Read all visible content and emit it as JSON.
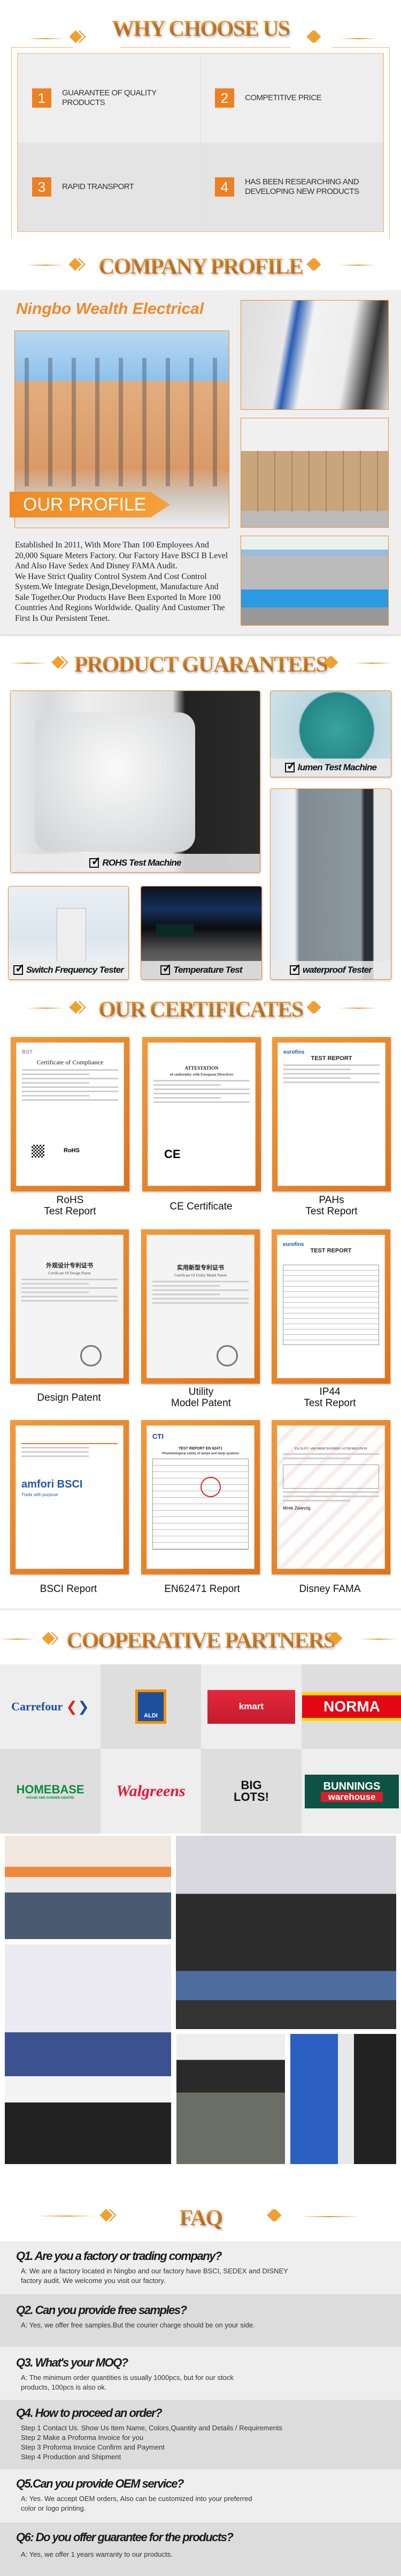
{
  "why_choose_us": {
    "title": "WHY CHOOSE US",
    "items": [
      {
        "num": "1",
        "text": "GUARANTEE OF QUALITY PRODUCTS"
      },
      {
        "num": "2",
        "text": "COMPETITIVE PRICE"
      },
      {
        "num": "3",
        "text": "RAPID TRANSPORT"
      },
      {
        "num": "4",
        "text": "HAS BEEN RESEARCHING AND DEVELOPING NEW PRODUCTS"
      }
    ]
  },
  "company_profile": {
    "title": "COMPANY PROFILE",
    "company_name": "Ningbo Wealth Electrical",
    "banner_label": "OUR PROFILE",
    "description": "Established In 2011, With More Than 100 Employees And 20,000 Square Meters Factory. Our Factory Have BSCI B Level And Also Have Sedex And Disney FAMA Audit.\nWe Have Strict Quality Control System And Cost Control System.We Integrate Design,Development, Manufacture And Sale Together.Our Products Have Been Exported In More 100 Countries And Regions Worldwide. Quality And Customer The First Is Our Persistent Tenet."
  },
  "product_guarantees": {
    "title": "PRODUCT GUARANTEES",
    "items": [
      "ROHS Test Machine",
      "lumen Test Machine",
      "Switch Frequency Tester",
      "Temperature Test",
      "waterproof Tester"
    ]
  },
  "certificates": {
    "title": "OUR CERTIFICATES",
    "items": [
      {
        "label": "RoHS\nTest Report",
        "doc_title": "Certificate of Compliance",
        "doc_mark": "RoHS",
        "doc_logo": "BST"
      },
      {
        "label": "CE Certificate",
        "doc_title": "ATTESTATION",
        "doc_sub": "of conformity with European Directives",
        "doc_mark": "CE"
      },
      {
        "label": "PAHs\nTest Report",
        "doc_title": "TEST REPORT",
        "doc_logo": "eurofins"
      },
      {
        "label": "Design Patent",
        "doc_title": "外观设计专利证书",
        "doc_sub": "Certificate Of Design Patent"
      },
      {
        "label": "Utility\nModel Patent",
        "doc_title": "实用新型专利证书",
        "doc_sub": "Certificate Of Utility Model Patent"
      },
      {
        "label": "IP44\nTest Report",
        "doc_title": "TEST REPORT",
        "doc_logo": "eurofins"
      },
      {
        "label": "BSCI Report",
        "doc_title": "amfori BSCI",
        "doc_sub": "Trade with purpose"
      },
      {
        "label": "EN62471 Report",
        "doc_title": "TEST REPORT EN 62471",
        "doc_sub": "Photobiological safety of lamps and lamp systems",
        "doc_logo": "CTI"
      },
      {
        "label": "Disney FAMA",
        "doc_title": "FACILITY AND MERCHANDISE AUTHORIZATION",
        "doc_sub": "Mirek Zwanzig"
      }
    ]
  },
  "partners": {
    "title": "COOPERATIVE PARTNERS",
    "logos": [
      {
        "name": "Carrefour"
      },
      {
        "name": "ALDI"
      },
      {
        "name": "kmart"
      },
      {
        "name": "NORMA"
      },
      {
        "name": "HOMEBASE",
        "sub": "HOUSE AND GARDEN CENTRE"
      },
      {
        "name": "Walgreens"
      },
      {
        "name": "BIG LOTS!"
      },
      {
        "name": "BUNNINGS",
        "sub": "warehouse"
      }
    ]
  },
  "faq": {
    "title": "FAQ",
    "items": [
      {
        "q": "Q1. Are you a factory or trading company?",
        "a": "A: We are a factory located in Ningbo and our factory have BSCI, SEDEX and DISNEY\nfactory audit. We welcome you visit our factory."
      },
      {
        "q": "Q2. Can you provide free samples?",
        "a": "A: Yes, we offer free samples.But the courier charge should be on your side."
      },
      {
        "q": "Q3. What's your MOQ?",
        "a": "A: The minimum order quantities is usually 1000pcs, but for our stock\nproducts, 100pcs is also ok."
      },
      {
        "q": "Q4. How to proceed an order?",
        "a": "Step 1 Contact Us. Show Us Item Name, Colors,Quantity and Details / Requirements\nStep 2 Make a Proforma Invoice for you\nStep 3 Proforma Invoice Confirm and Payment\nStep 4 Production and Shipment"
      },
      {
        "q": "Q5.Can you provide OEM service?",
        "a": "A: Yes. We accept OEM orders, Also can be customized into your preferred\ncolor or logo printing."
      },
      {
        "q": "Q6: Do you offer guarantee for the products?",
        "a": "A: Yes, we offer 1 years warranty to our products."
      }
    ]
  },
  "colors": {
    "accent": "#ef8a2a",
    "number_box": "#ee8022",
    "panel_light": "#eeeeee",
    "panel_dark": "#dddddd"
  }
}
